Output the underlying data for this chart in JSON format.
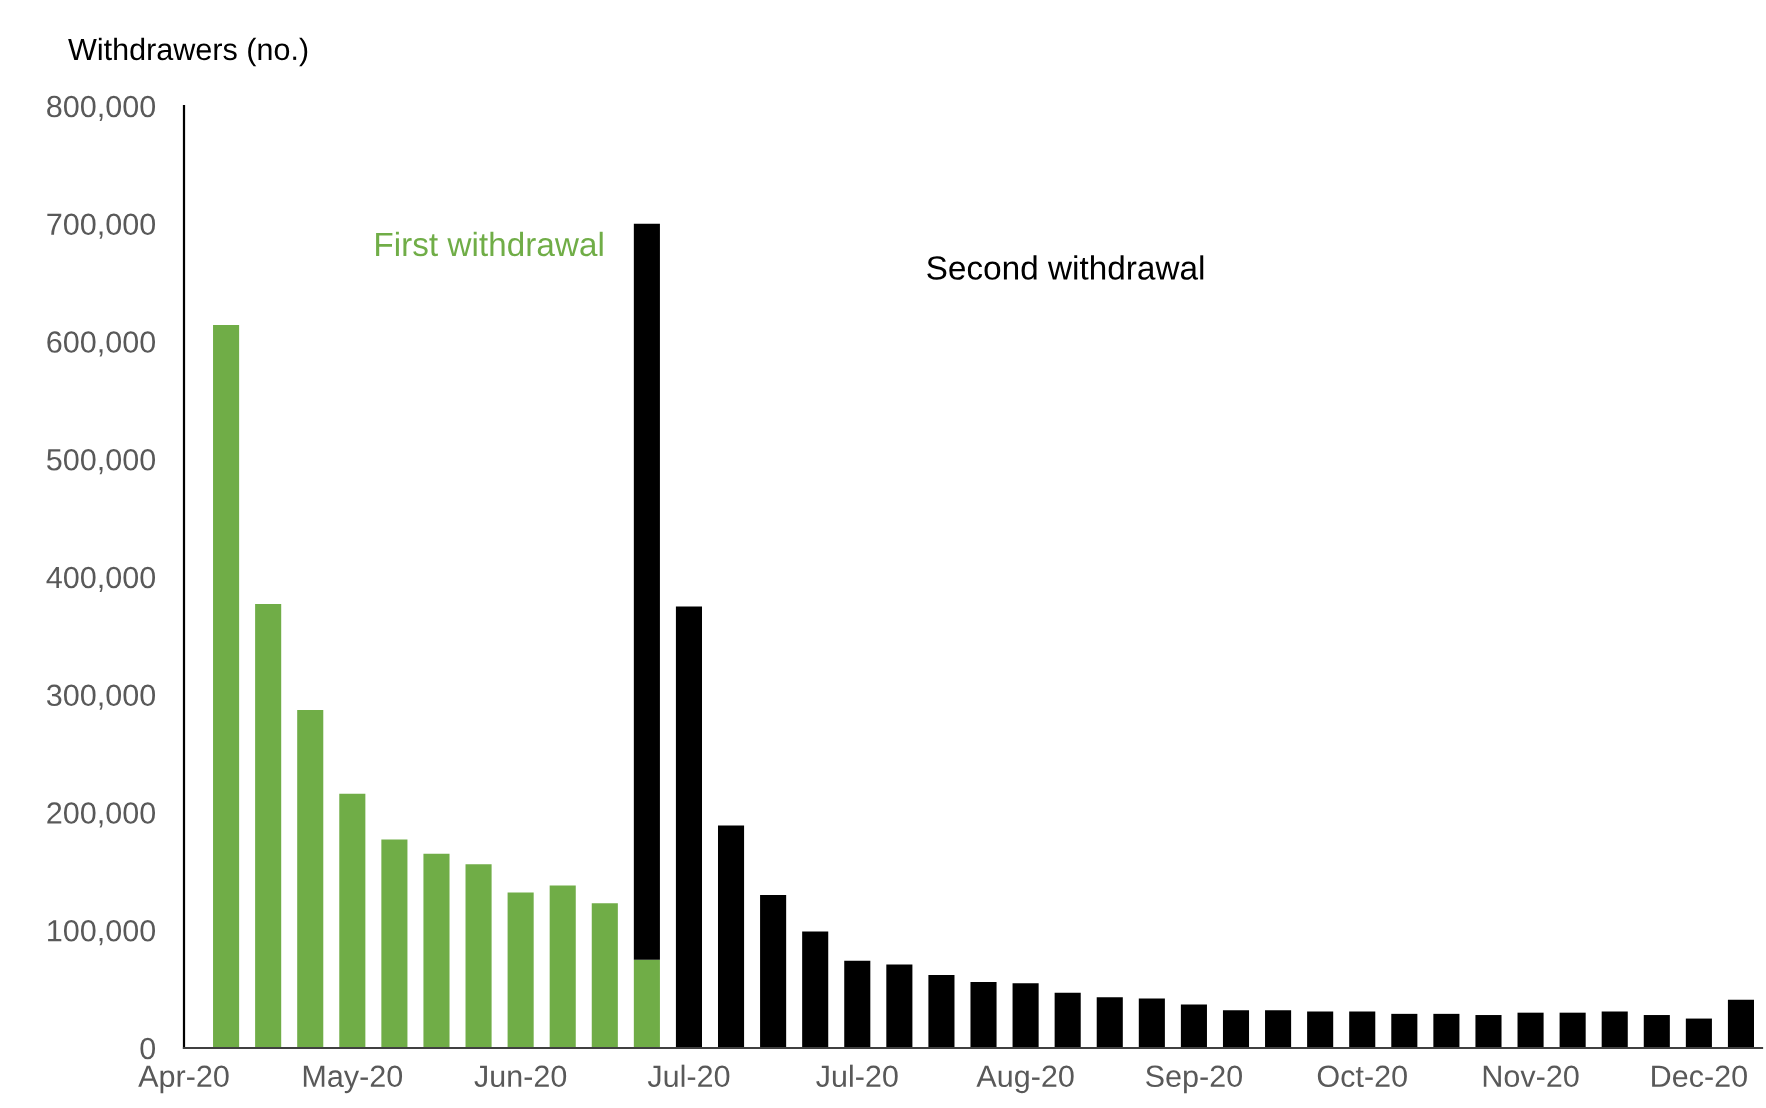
{
  "chart_data": {
    "type": "bar",
    "stacked": true,
    "ylabel": "Withdrawers (no.)",
    "categories": [
      "Apr-20",
      null,
      null,
      null,
      "May-20",
      null,
      null,
      null,
      "Jun-20",
      null,
      null,
      null,
      "Jul-20",
      null,
      null,
      null,
      "Jul-20",
      null,
      null,
      null,
      "Aug-20",
      null,
      null,
      null,
      "Sep-20",
      null,
      null,
      null,
      "Oct-20",
      null,
      null,
      null,
      "Nov-20",
      null,
      null,
      null,
      "Dec-20",
      null
    ],
    "series": [
      {
        "name": "First withdrawal",
        "color": "#70ad47",
        "values": [
          null,
          614000,
          377000,
          287000,
          216000,
          177000,
          165000,
          156000,
          132000,
          138000,
          123000,
          75000,
          null,
          null,
          null,
          null,
          null,
          null,
          null,
          null,
          null,
          null,
          null,
          null,
          null,
          null,
          null,
          null,
          null,
          null,
          null,
          null,
          null,
          null,
          null,
          null,
          null,
          null
        ]
      },
      {
        "name": "Second withdrawal",
        "color": "#000000",
        "values": [
          null,
          null,
          null,
          null,
          null,
          null,
          null,
          null,
          null,
          null,
          null,
          625000,
          375000,
          189000,
          130000,
          99000,
          74000,
          71000,
          62000,
          56000,
          55000,
          47000,
          43000,
          42000,
          37000,
          32000,
          32000,
          31000,
          31000,
          29000,
          29000,
          28000,
          30000,
          30000,
          31000,
          28000,
          25000,
          41000
        ]
      }
    ],
    "ylim": [
      0,
      800000
    ],
    "yticks": [
      0,
      {
        "value": 100000,
        "label": "100,000"
      },
      {
        "value": 200000,
        "label": "200,000"
      },
      {
        "value": 300000,
        "label": "300,000"
      },
      {
        "value": 400000,
        "label": "400,000"
      },
      {
        "value": 500000,
        "label": "500,000"
      },
      {
        "value": 600000,
        "label": "600,000"
      },
      {
        "value": 700000,
        "label": "700,000"
      },
      {
        "value": 800000,
        "label": "800,000"
      }
    ],
    "grid": false,
    "legend": false
  }
}
